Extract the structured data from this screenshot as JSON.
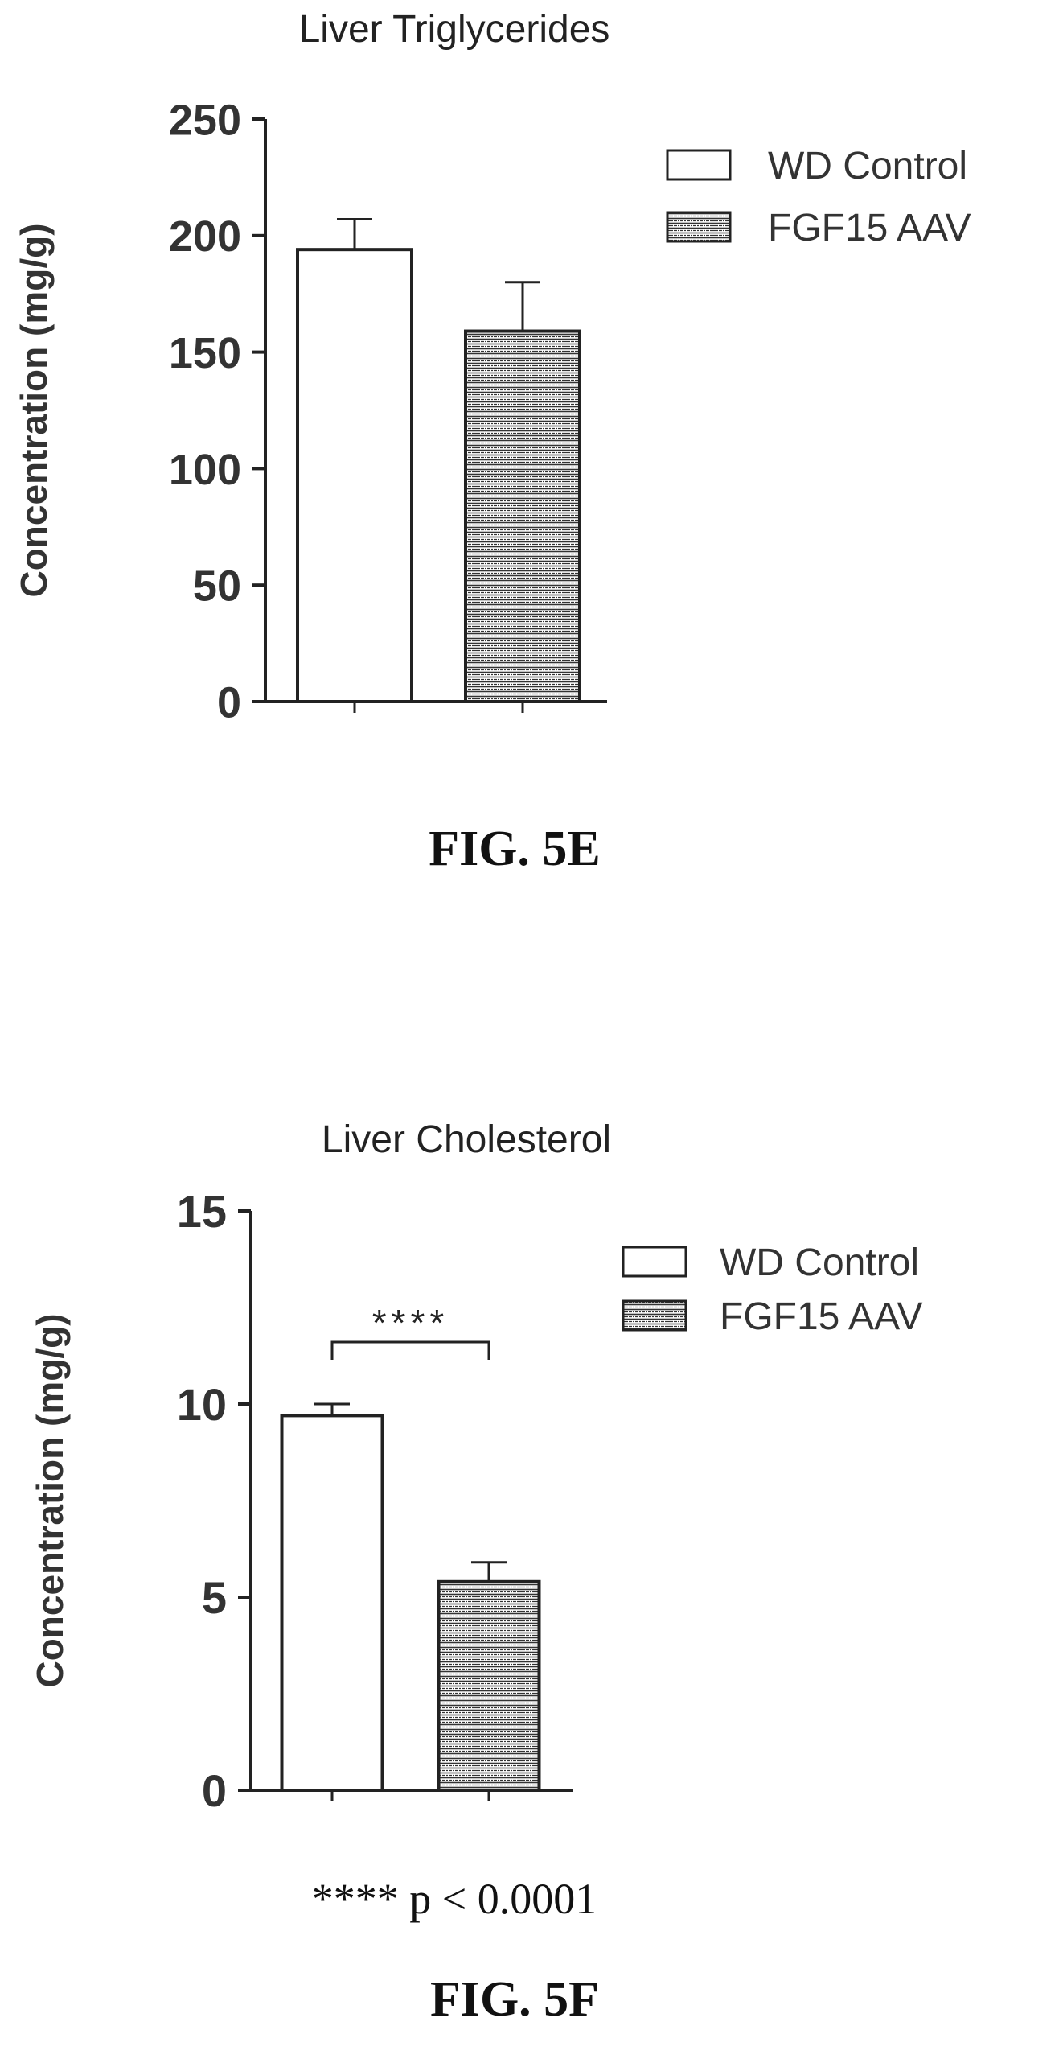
{
  "figures": [
    {
      "caption": "FIG. 5E",
      "chart_data": {
        "type": "bar",
        "title": "Liver Triglycerides",
        "ylabel": "Concentration (mg/g)",
        "xlabel": "",
        "ylim": [
          0,
          250
        ],
        "yticks": [
          "0",
          "50",
          "100",
          "150",
          "200",
          "250"
        ],
        "categories": [
          "WD Control",
          "FGF15 AAV"
        ],
        "values": [
          194,
          159
        ],
        "errors": [
          13,
          21
        ],
        "legend": {
          "position": "top-right",
          "entries": [
            {
              "label": "WD Control",
              "pattern": "open"
            },
            {
              "label": "FGF15 AAV",
              "pattern": "horizontal-hatch"
            }
          ]
        }
      }
    },
    {
      "caption": "FIG. 5F",
      "footnote": "**** p < 0.0001",
      "chart_data": {
        "type": "bar",
        "title": "Liver Cholesterol",
        "ylabel": "Concentration (mg/g)",
        "xlabel": "",
        "ylim": [
          0,
          15
        ],
        "yticks": [
          "0",
          "5",
          "10",
          "15"
        ],
        "categories": [
          "WD Control",
          "FGF15 AAV"
        ],
        "values": [
          9.7,
          5.4
        ],
        "errors": [
          0.3,
          0.5
        ],
        "significance": {
          "label": "****",
          "between": [
            "WD Control",
            "FGF15 AAV"
          ]
        },
        "legend": {
          "position": "top-right",
          "entries": [
            {
              "label": "WD Control",
              "pattern": "open"
            },
            {
              "label": "FGF15 AAV",
              "pattern": "horizontal-hatch"
            }
          ]
        }
      }
    }
  ]
}
